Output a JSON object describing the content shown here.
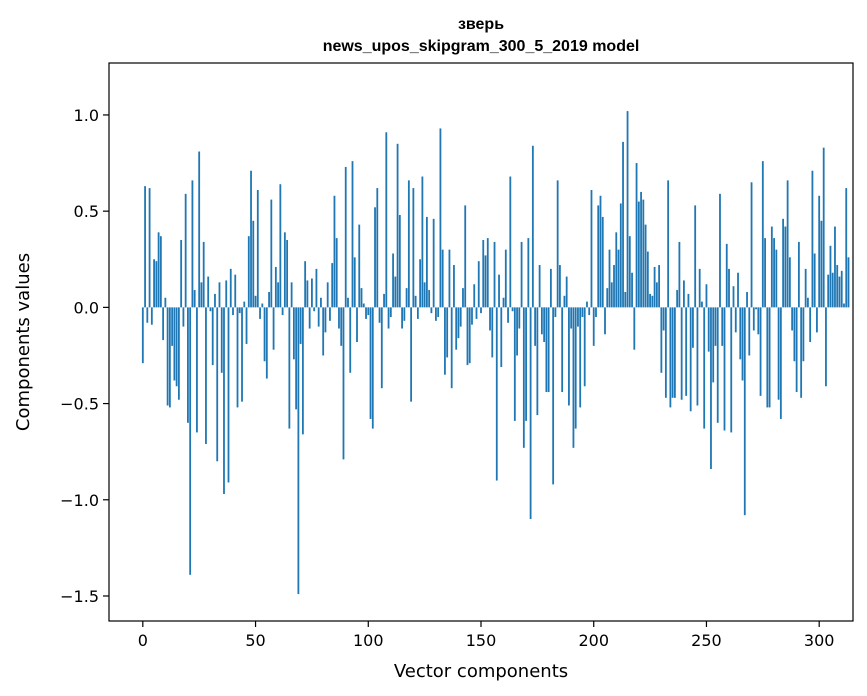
{
  "chart_data": {
    "type": "bar",
    "title": "зверь",
    "subtitle": "news_upos_skipgram_300_5_2019 model",
    "xlabel": "Vector components",
    "ylabel": "Components values",
    "xlim": [
      -15,
      315
    ],
    "ylim": [
      -1.63,
      1.27
    ],
    "xticks": [
      0,
      50,
      100,
      150,
      200,
      250,
      300
    ],
    "yticks": [
      -1.5,
      -1.0,
      -0.5,
      0.0,
      0.5,
      1.0
    ],
    "ytick_labels": [
      "−1.5",
      "−1.0",
      "−0.5",
      "0.0",
      "0.5",
      "1.0"
    ],
    "bar_color": "#1f77b4",
    "grid": false,
    "values": [
      -0.29,
      0.63,
      -0.08,
      0.62,
      -0.09,
      0.25,
      0.24,
      0.39,
      0.37,
      -0.17,
      0.05,
      -0.51,
      -0.52,
      -0.2,
      -0.38,
      -0.41,
      -0.48,
      0.35,
      -0.1,
      0.59,
      -0.6,
      -1.39,
      0.66,
      0.09,
      -0.65,
      0.81,
      0.13,
      0.34,
      -0.71,
      0.16,
      -0.02,
      -0.3,
      0.07,
      -0.8,
      0.13,
      -0.34,
      -0.97,
      0.14,
      -0.91,
      0.2,
      -0.04,
      0.17,
      -0.52,
      -0.03,
      -0.49,
      0.03,
      -0.19,
      0.37,
      0.71,
      0.45,
      0.06,
      0.61,
      -0.06,
      0.02,
      -0.28,
      -0.37,
      0.08,
      0.56,
      -0.22,
      0.21,
      0.13,
      0.64,
      -0.04,
      0.39,
      0.35,
      -0.63,
      0.13,
      -0.27,
      -0.53,
      -1.49,
      -0.19,
      -0.66,
      0.24,
      0.14,
      -0.11,
      0.15,
      -0.02,
      0.2,
      -0.1,
      0.05,
      -0.25,
      -0.13,
      0.13,
      -0.07,
      0.23,
      0.58,
      0.36,
      -0.11,
      -0.2,
      -0.79,
      0.73,
      0.05,
      -0.34,
      0.76,
      0.26,
      -0.18,
      0.43,
      0.1,
      0.02,
      -0.06,
      -0.04,
      -0.58,
      -0.63,
      0.52,
      0.62,
      -0.08,
      -0.42,
      0.07,
      0.91,
      -0.11,
      -0.05,
      0.28,
      0.16,
      0.85,
      0.48,
      -0.11,
      -0.07,
      0.1,
      0.66,
      -0.49,
      0.62,
      0.06,
      -0.06,
      0.25,
      0.68,
      0.13,
      0.47,
      0.09,
      -0.03,
      0.46,
      -0.07,
      -0.05,
      0.93,
      0.3,
      -0.35,
      -0.26,
      0.3,
      -0.42,
      0.22,
      -0.22,
      -0.16,
      -0.1,
      0.1,
      0.53,
      -0.3,
      -0.29,
      -0.09,
      0.12,
      -0.06,
      0.24,
      -0.03,
      0.35,
      0.27,
      0.36,
      -0.12,
      -0.26,
      0.34,
      -0.9,
      0.17,
      -0.31,
      0.05,
      0.3,
      -0.08,
      0.68,
      -0.02,
      -0.59,
      -0.25,
      -0.11,
      0.34,
      -0.73,
      -0.59,
      0.36,
      -1.1,
      0.84,
      -0.2,
      -0.56,
      0.22,
      -0.14,
      -0.18,
      -0.44,
      -0.44,
      0.2,
      -0.92,
      -0.05,
      0.66,
      0.22,
      -0.44,
      0.06,
      0.16,
      -0.51,
      -0.11,
      -0.73,
      -0.63,
      -0.1,
      -0.52,
      -0.05,
      -0.41,
      0.03,
      -0.04,
      0.61,
      -0.2,
      -0.05,
      0.53,
      0.58,
      0.47,
      -0.14,
      0.1,
      0.3,
      0.13,
      0.22,
      0.39,
      0.3,
      0.54,
      0.86,
      0.08,
      1.02,
      0.37,
      0.18,
      -0.22,
      0.75,
      0.55,
      0.6,
      0.56,
      0.43,
      0.29,
      0.07,
      0.06,
      0.21,
      0.13,
      0.22,
      -0.34,
      -0.12,
      -0.47,
      0.66,
      -0.52,
      -0.47,
      -0.47,
      0.09,
      0.34,
      -0.48,
      0.14,
      -0.46,
      0.07,
      -0.54,
      -0.21,
      0.53,
      -0.51,
      0.2,
      0.03,
      -0.63,
      0.12,
      -0.23,
      -0.84,
      -0.39,
      -0.2,
      -0.6,
      0.59,
      -0.2,
      -0.64,
      0.33,
      0.2,
      -0.65,
      0.11,
      -0.13,
      0.18,
      -0.27,
      -0.38,
      -1.08,
      0.08,
      -0.25,
      0.65,
      -0.12,
      -0.01,
      -0.14,
      -0.46,
      0.76,
      0.36,
      -0.52,
      -0.52,
      0.42,
      0.36,
      0.3,
      -0.48,
      -0.58,
      0.46,
      0.42,
      0.66,
      0.26,
      -0.12,
      -0.28,
      -0.44,
      0.34,
      -0.47,
      -0.28,
      0.2,
      0.05,
      -0.18,
      0.71,
      0.28,
      -0.13,
      0.58,
      0.45,
      0.83,
      -0.41,
      0.17,
      0.32,
      0.18,
      0.42,
      0.22,
      0.16,
      0.19,
      0.02,
      0.62,
      0.26
    ]
  }
}
